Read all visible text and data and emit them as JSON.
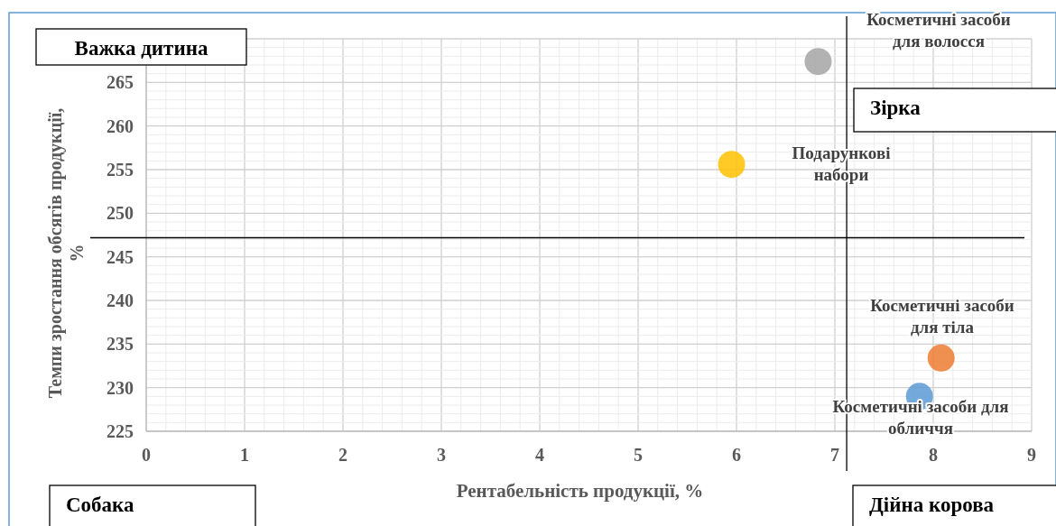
{
  "chart_data": {
    "type": "scatter",
    "xlabel": "Рентабельність продукції, %",
    "ylabel": "Темпи зростання обсягів продукції, %",
    "xlim": [
      0,
      9
    ],
    "xticks": [
      0,
      1,
      2,
      3,
      4,
      5,
      6,
      7,
      8,
      9
    ],
    "ylim": [
      225,
      270
    ],
    "yticks": [
      225,
      230,
      235,
      240,
      245,
      250,
      255,
      260,
      265,
      {
        "value": 270,
        "label": null
      }
    ],
    "grid": true,
    "marker": "circle",
    "series": [
      {
        "name": "Косметичні засоби для волосся",
        "color": "#a5a5a5",
        "x": [
          6.83
        ],
        "values": [
          267.4
        ]
      },
      {
        "name": "Подарункові набори",
        "color": "#ffc000",
        "x": [
          5.95
        ],
        "values": [
          255.6
        ]
      },
      {
        "name": "Косметичні засоби для тіла",
        "color": "#ed7d31",
        "x": [
          8.08
        ],
        "values": [
          233.4
        ]
      },
      {
        "name": "Косметичні засоби для обличчя",
        "color": "#5b9bd5",
        "x": [
          7.86
        ],
        "values": [
          229.0
        ]
      }
    ],
    "ref_lines": [
      {
        "axis": "y",
        "value": 247.2,
        "color": "#000000"
      },
      {
        "axis": "x",
        "value": 7.12,
        "color": "#000000"
      }
    ],
    "annotations": [
      "Важка дитина",
      "Зірка",
      "Собака",
      "Дійна корова"
    ]
  }
}
